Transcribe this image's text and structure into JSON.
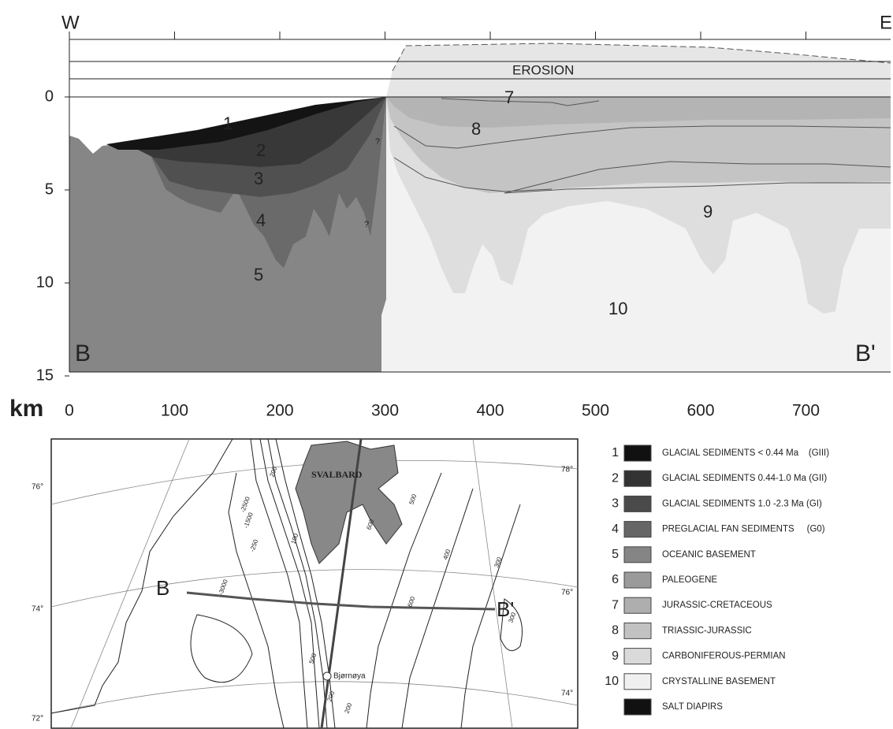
{
  "section": {
    "edge_labels": {
      "west": "W",
      "east": "E"
    },
    "y_axis": {
      "ticks": [
        0,
        5,
        10,
        15
      ]
    },
    "x_axis": {
      "unit": "km",
      "ticks": [
        0,
        100,
        200,
        300,
        400,
        500,
        600,
        700
      ]
    },
    "erosion": "EROSION",
    "profile_ends": [
      "B",
      "B'"
    ],
    "unit_labels": [
      "1",
      "2",
      "3",
      "4",
      "5",
      "7",
      "8",
      "9",
      "10",
      "?",
      "?"
    ]
  },
  "map": {
    "place_labels": [
      "SVALBARD",
      "Bjørnøya"
    ],
    "line_ends": [
      "B",
      "B'"
    ],
    "latitudes_left": [
      "76°",
      "74°",
      "72°"
    ],
    "latitudes_right": [
      "78°",
      "76°",
      "74°"
    ],
    "contours": [
      "-2500",
      "-1500",
      "-250",
      "100",
      "200",
      "500",
      "600",
      "400",
      "300",
      "-3000",
      "600",
      "500",
      "200",
      "200",
      "300"
    ]
  },
  "legend": {
    "items": [
      {
        "number": "1",
        "label": "GLACIAL SEDIMENTS < 0.44 Ma    (GIII)",
        "color": "#111111"
      },
      {
        "number": "2",
        "label": "GLACIAL SEDIMENTS 0.44-1.0 Ma (GII)",
        "color": "#333333"
      },
      {
        "number": "3",
        "label": "GLACIAL SEDIMENTS 1.0 -2.3 Ma (GI)",
        "color": "#4a4a4a"
      },
      {
        "number": "4",
        "label": "PREGLACIAL FAN SEDIMENTS     (G0)",
        "color": "#666666"
      },
      {
        "number": "5",
        "label": "OCEANIC BASEMENT",
        "color": "#858585"
      },
      {
        "number": "6",
        "label": "PALEOGENE",
        "color": "#9a9a9a"
      },
      {
        "number": "7",
        "label": "JURASSIC-CRETACEOUS",
        "color": "#aeaeae"
      },
      {
        "number": "8",
        "label": "TRIASSIC-JURASSIC",
        "color": "#c2c2c2"
      },
      {
        "number": "9",
        "label": "CARBONIFEROUS-PERMIAN",
        "color": "#dadada"
      },
      {
        "number": "10",
        "label": "CRYSTALLINE BASEMENT",
        "color": "#f0f0f0"
      },
      {
        "label": "SALT DIAPIRS",
        "color": "#111111"
      }
    ]
  }
}
